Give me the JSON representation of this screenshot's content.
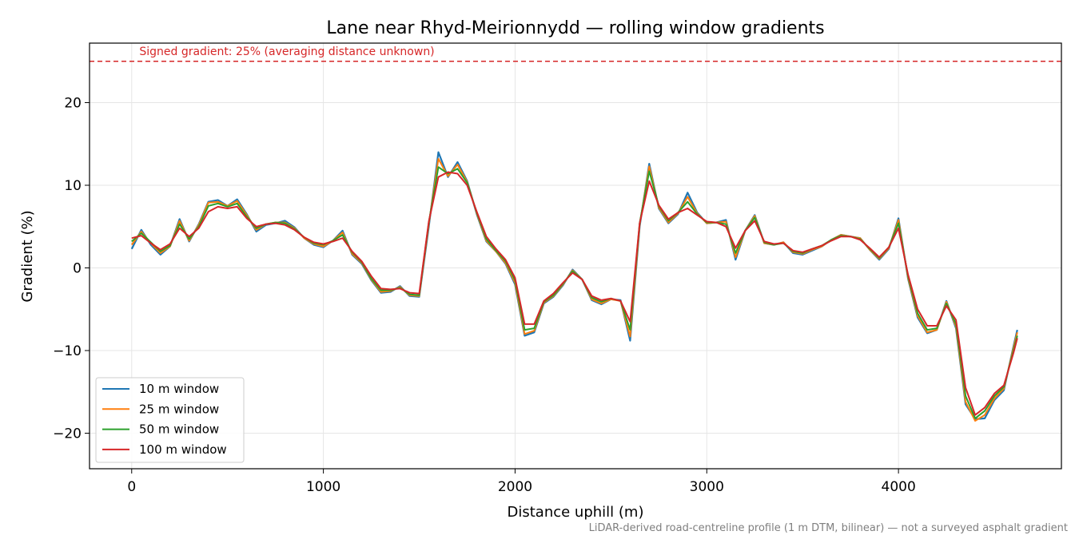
{
  "chart_data": {
    "type": "line",
    "title": "Lane near Rhyd-Meirionnydd — rolling window gradients",
    "xlabel": "Distance uphill (m)",
    "ylabel": "Gradient (%)",
    "xlim": [
      -220,
      4850
    ],
    "ylim": [
      -24.3,
      27.2
    ],
    "xticks": [
      0,
      1000,
      2000,
      3000,
      4000
    ],
    "xtick_labels": [
      "0",
      "1000",
      "2000",
      "3000",
      "4000"
    ],
    "yticks": [
      -20,
      -10,
      0,
      10,
      20
    ],
    "ytick_labels": [
      "−20",
      "−10",
      "0",
      "10",
      "20"
    ],
    "grid": true,
    "legend_position": "lower-left",
    "reference_line": {
      "y": 25,
      "label": "Signed gradient: 25% (averaging distance unknown)",
      "color": "#d62728",
      "style": "dashed"
    },
    "footnote": "LiDAR-derived road-centreline profile (1 m DTM, bilinear) — not a surveyed asphalt gradient",
    "x": [
      0,
      50,
      100,
      150,
      200,
      250,
      300,
      350,
      400,
      450,
      500,
      550,
      600,
      650,
      700,
      750,
      800,
      850,
      900,
      950,
      1000,
      1050,
      1100,
      1150,
      1200,
      1250,
      1300,
      1350,
      1400,
      1450,
      1500,
      1550,
      1600,
      1650,
      1700,
      1750,
      1800,
      1850,
      1900,
      1950,
      2000,
      2050,
      2100,
      2150,
      2200,
      2250,
      2300,
      2350,
      2400,
      2450,
      2500,
      2550,
      2600,
      2650,
      2700,
      2750,
      2800,
      2850,
      2900,
      2950,
      3000,
      3050,
      3100,
      3150,
      3200,
      3250,
      3300,
      3350,
      3400,
      3450,
      3500,
      3550,
      3600,
      3650,
      3700,
      3750,
      3800,
      3850,
      3900,
      3950,
      4000,
      4050,
      4100,
      4150,
      4200,
      4250,
      4300,
      4350,
      4400,
      4450,
      4500,
      4550,
      4600,
      4620
    ],
    "series": [
      {
        "name": "10 m window",
        "color": "#1f77b4",
        "values": [
          2.3,
          4.6,
          2.8,
          1.6,
          2.6,
          5.9,
          3.2,
          5.3,
          8.0,
          8.2,
          7.5,
          8.3,
          6.5,
          4.4,
          5.2,
          5.4,
          5.7,
          4.9,
          3.6,
          2.8,
          2.5,
          3.3,
          4.5,
          1.6,
          0.5,
          -1.5,
          -3.0,
          -2.9,
          -2.2,
          -3.4,
          -3.5,
          5.0,
          14.0,
          11.0,
          12.8,
          10.5,
          6.5,
          3.2,
          2.0,
          0.5,
          -2.0,
          -8.2,
          -7.8,
          -4.3,
          -3.5,
          -2.1,
          -0.2,
          -1.4,
          -3.9,
          -4.4,
          -3.8,
          -3.9,
          -8.8,
          5.0,
          12.6,
          7.2,
          5.4,
          6.5,
          9.1,
          6.7,
          5.4,
          5.5,
          5.8,
          1.0,
          4.5,
          6.4,
          3.0,
          2.8,
          3.1,
          1.8,
          1.6,
          2.1,
          2.6,
          3.4,
          4.0,
          3.8,
          3.6,
          2.2,
          1.0,
          2.3,
          6.0,
          -1.3,
          -6.0,
          -7.9,
          -7.5,
          -4.0,
          -7.3,
          -16.5,
          -18.3,
          -18.2,
          -16.0,
          -14.8,
          -9.5,
          -7.5
        ]
      },
      {
        "name": "25 m window",
        "color": "#ff7f0e",
        "values": [
          2.8,
          4.4,
          3.0,
          1.8,
          2.6,
          5.7,
          3.3,
          5.2,
          7.9,
          8.0,
          7.5,
          8.1,
          6.4,
          4.6,
          5.3,
          5.5,
          5.5,
          4.8,
          3.6,
          2.9,
          2.6,
          3.3,
          4.3,
          1.7,
          0.6,
          -1.4,
          -2.9,
          -2.8,
          -2.3,
          -3.3,
          -3.4,
          5.3,
          13.2,
          11.1,
          12.5,
          10.4,
          6.6,
          3.3,
          2.0,
          0.6,
          -1.8,
          -8.0,
          -7.6,
          -4.2,
          -3.4,
          -2.0,
          -0.3,
          -1.4,
          -3.8,
          -4.3,
          -3.8,
          -4.0,
          -8.3,
          5.2,
          12.3,
          7.3,
          5.5,
          6.6,
          8.6,
          6.6,
          5.4,
          5.5,
          5.6,
          1.3,
          4.5,
          6.3,
          3.0,
          2.8,
          3.1,
          1.9,
          1.7,
          2.2,
          2.6,
          3.4,
          4.0,
          3.8,
          3.6,
          2.2,
          1.1,
          2.4,
          5.8,
          -1.2,
          -5.8,
          -7.8,
          -7.5,
          -4.1,
          -7.1,
          -16.2,
          -18.5,
          -17.8,
          -15.8,
          -14.6,
          -9.7,
          -7.8
        ]
      },
      {
        "name": "50 m window",
        "color": "#2ca02c",
        "values": [
          3.2,
          4.2,
          3.1,
          2.0,
          2.7,
          5.3,
          3.5,
          5.0,
          7.5,
          7.8,
          7.4,
          7.8,
          6.2,
          4.8,
          5.3,
          5.5,
          5.4,
          4.7,
          3.7,
          3.0,
          2.8,
          3.3,
          4.0,
          1.9,
          0.7,
          -1.3,
          -2.7,
          -2.7,
          -2.4,
          -3.2,
          -3.3,
          5.5,
          12.2,
          11.4,
          12.0,
          10.3,
          6.7,
          3.5,
          2.1,
          0.8,
          -1.5,
          -7.5,
          -7.3,
          -4.1,
          -3.3,
          -1.9,
          -0.4,
          -1.4,
          -3.6,
          -4.1,
          -3.7,
          -4.0,
          -7.5,
          5.4,
          11.7,
          7.5,
          5.7,
          6.7,
          8.0,
          6.5,
          5.5,
          5.5,
          5.3,
          1.8,
          4.5,
          6.1,
          3.1,
          2.8,
          3.0,
          2.0,
          1.8,
          2.3,
          2.7,
          3.4,
          3.9,
          3.8,
          3.5,
          2.3,
          1.2,
          2.5,
          5.4,
          -1.0,
          -5.5,
          -7.5,
          -7.3,
          -4.3,
          -6.8,
          -15.5,
          -18.2,
          -17.3,
          -15.5,
          -14.4,
          -10.0,
          -8.2
        ]
      },
      {
        "name": "100 m window",
        "color": "#d62728",
        "values": [
          3.6,
          3.9,
          3.0,
          2.2,
          2.9,
          4.8,
          3.8,
          4.8,
          6.8,
          7.4,
          7.2,
          7.4,
          6.0,
          5.0,
          5.3,
          5.4,
          5.2,
          4.6,
          3.7,
          3.1,
          2.9,
          3.2,
          3.6,
          2.0,
          0.8,
          -1.0,
          -2.5,
          -2.6,
          -2.5,
          -3.0,
          -3.1,
          5.6,
          11.0,
          11.6,
          11.4,
          10.0,
          6.8,
          3.8,
          2.3,
          1.0,
          -1.2,
          -6.8,
          -6.8,
          -4.0,
          -3.1,
          -1.8,
          -0.6,
          -1.4,
          -3.4,
          -3.9,
          -3.7,
          -4.0,
          -6.5,
          5.4,
          10.5,
          7.6,
          5.9,
          6.7,
          7.2,
          6.4,
          5.6,
          5.5,
          5.0,
          2.4,
          4.5,
          5.7,
          3.2,
          2.9,
          3.0,
          2.1,
          1.9,
          2.3,
          2.7,
          3.3,
          3.8,
          3.8,
          3.4,
          2.4,
          1.3,
          2.5,
          4.8,
          -0.8,
          -5.0,
          -7.0,
          -7.0,
          -4.6,
          -6.3,
          -14.5,
          -17.8,
          -16.9,
          -15.2,
          -14.2,
          -10.3,
          -8.5
        ]
      }
    ]
  }
}
